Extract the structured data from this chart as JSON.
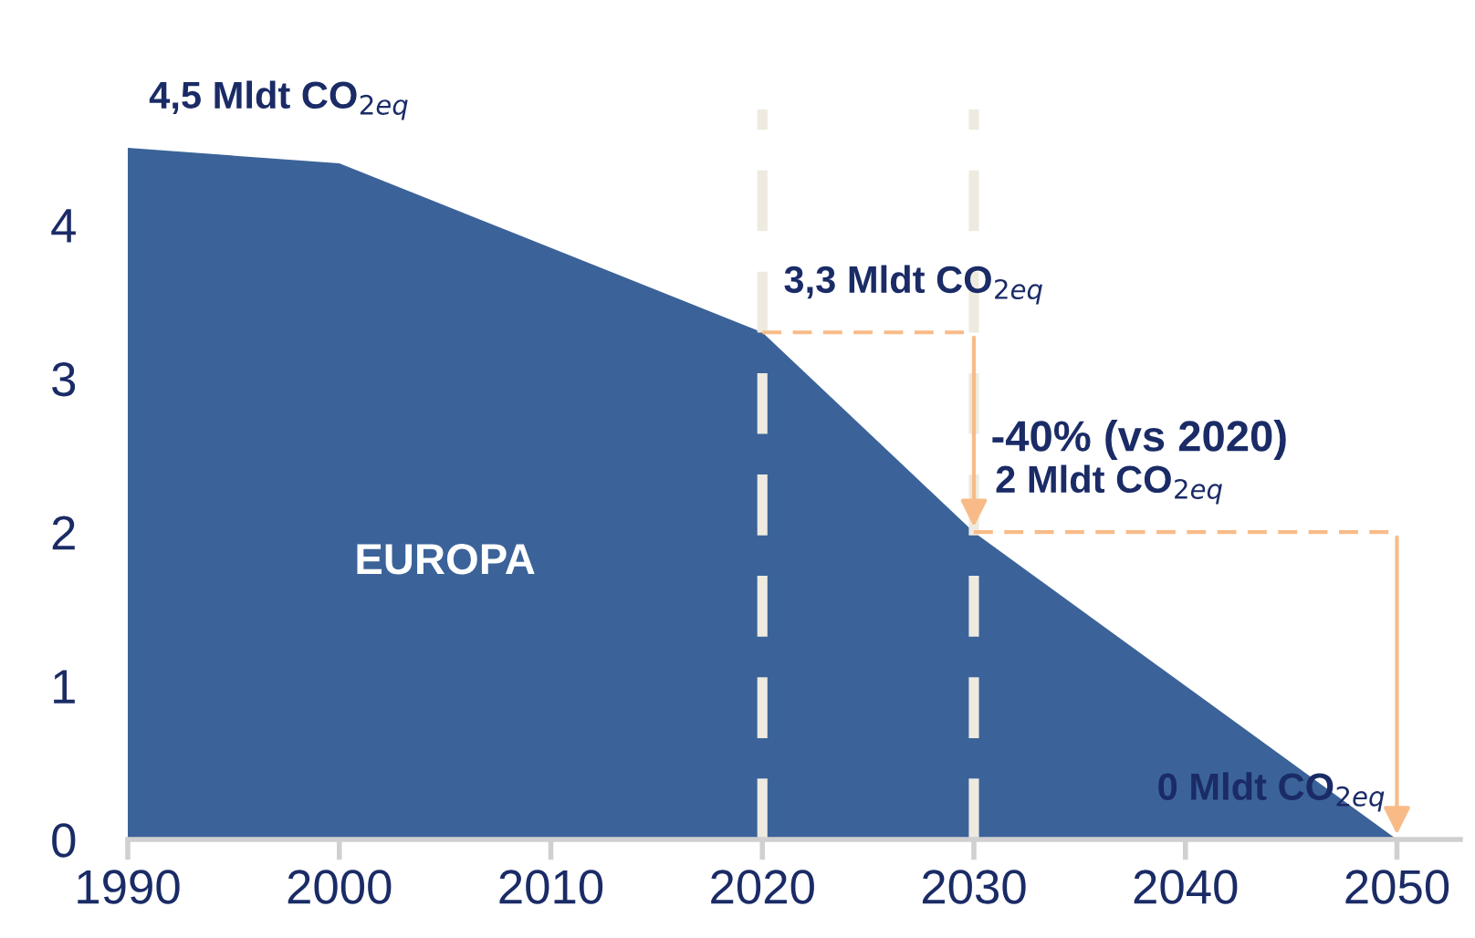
{
  "chart_data": {
    "type": "area",
    "x": [
      1990,
      2000,
      2020,
      2030,
      2050
    ],
    "series": [
      {
        "name": "EUROPA",
        "color": "#3b6399",
        "values": [
          4.5,
          4.4,
          3.3,
          2,
          0
        ],
        "value_labels": [
          "4,5 Mldt CO$_{2eq}$",
          null,
          "3,3 Mldt CO$_{2eq}$",
          "2 Mldt CO$_{2eq}$",
          "0 Mldt CO$_{2eq}$"
        ]
      }
    ],
    "xlim": [
      1990,
      2053
    ],
    "xticks": [
      1990,
      2000,
      2010,
      2020,
      2030,
      2040,
      2050
    ],
    "ylim": [
      0,
      4.75
    ],
    "yticks": [
      0,
      1,
      2,
      3,
      4
    ],
    "grid": false,
    "legend": false,
    "ref_lines": [
      {
        "axis": "x",
        "value": 2020,
        "label": null,
        "color": "#eeeae0",
        "line_style": "dashed"
      },
      {
        "axis": "x",
        "value": 2030,
        "label": null,
        "color": "#eeeae0",
        "line_style": "dashed"
      }
    ],
    "annotations": [
      {
        "text": "-40% (vs 2020)",
        "x": 2030,
        "y": 2.6
      }
    ]
  }
}
